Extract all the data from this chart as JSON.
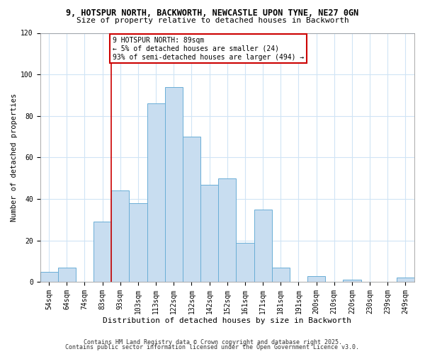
{
  "title1": "9, HOTSPUR NORTH, BACKWORTH, NEWCASTLE UPON TYNE, NE27 0GN",
  "title2": "Size of property relative to detached houses in Backworth",
  "xlabel": "Distribution of detached houses by size in Backworth",
  "ylabel": "Number of detached properties",
  "bins": [
    "54sqm",
    "64sqm",
    "74sqm",
    "83sqm",
    "93sqm",
    "103sqm",
    "113sqm",
    "122sqm",
    "132sqm",
    "142sqm",
    "152sqm",
    "161sqm",
    "171sqm",
    "181sqm",
    "191sqm",
    "200sqm",
    "210sqm",
    "220sqm",
    "230sqm",
    "239sqm",
    "249sqm"
  ],
  "counts": [
    5,
    7,
    0,
    29,
    44,
    38,
    86,
    94,
    70,
    47,
    50,
    19,
    35,
    7,
    0,
    3,
    0,
    1,
    0,
    0,
    2
  ],
  "bar_color": "#c8ddf0",
  "bar_edge_color": "#6aaed6",
  "annotation_line1": "9 HOTSPUR NORTH: 89sqm",
  "annotation_line2": "← 5% of detached houses are smaller (24)",
  "annotation_line3": "93% of semi-detached houses are larger (494) →",
  "annotation_box_color": "#ffffff",
  "annotation_box_edge_color": "#cc0000",
  "grid_color": "#d0e4f5",
  "background_color": "#ffffff",
  "ylim": [
    0,
    120
  ],
  "yticks": [
    0,
    20,
    40,
    60,
    80,
    100,
    120
  ],
  "footer1": "Contains HM Land Registry data © Crown copyright and database right 2025.",
  "footer2": "Contains public sector information licensed under the Open Government Licence v3.0.",
  "title1_fontsize": 8.5,
  "title2_fontsize": 8,
  "xlabel_fontsize": 8,
  "ylabel_fontsize": 7.5,
  "tick_fontsize": 7,
  "annotation_fontsize": 7,
  "footer_fontsize": 6
}
